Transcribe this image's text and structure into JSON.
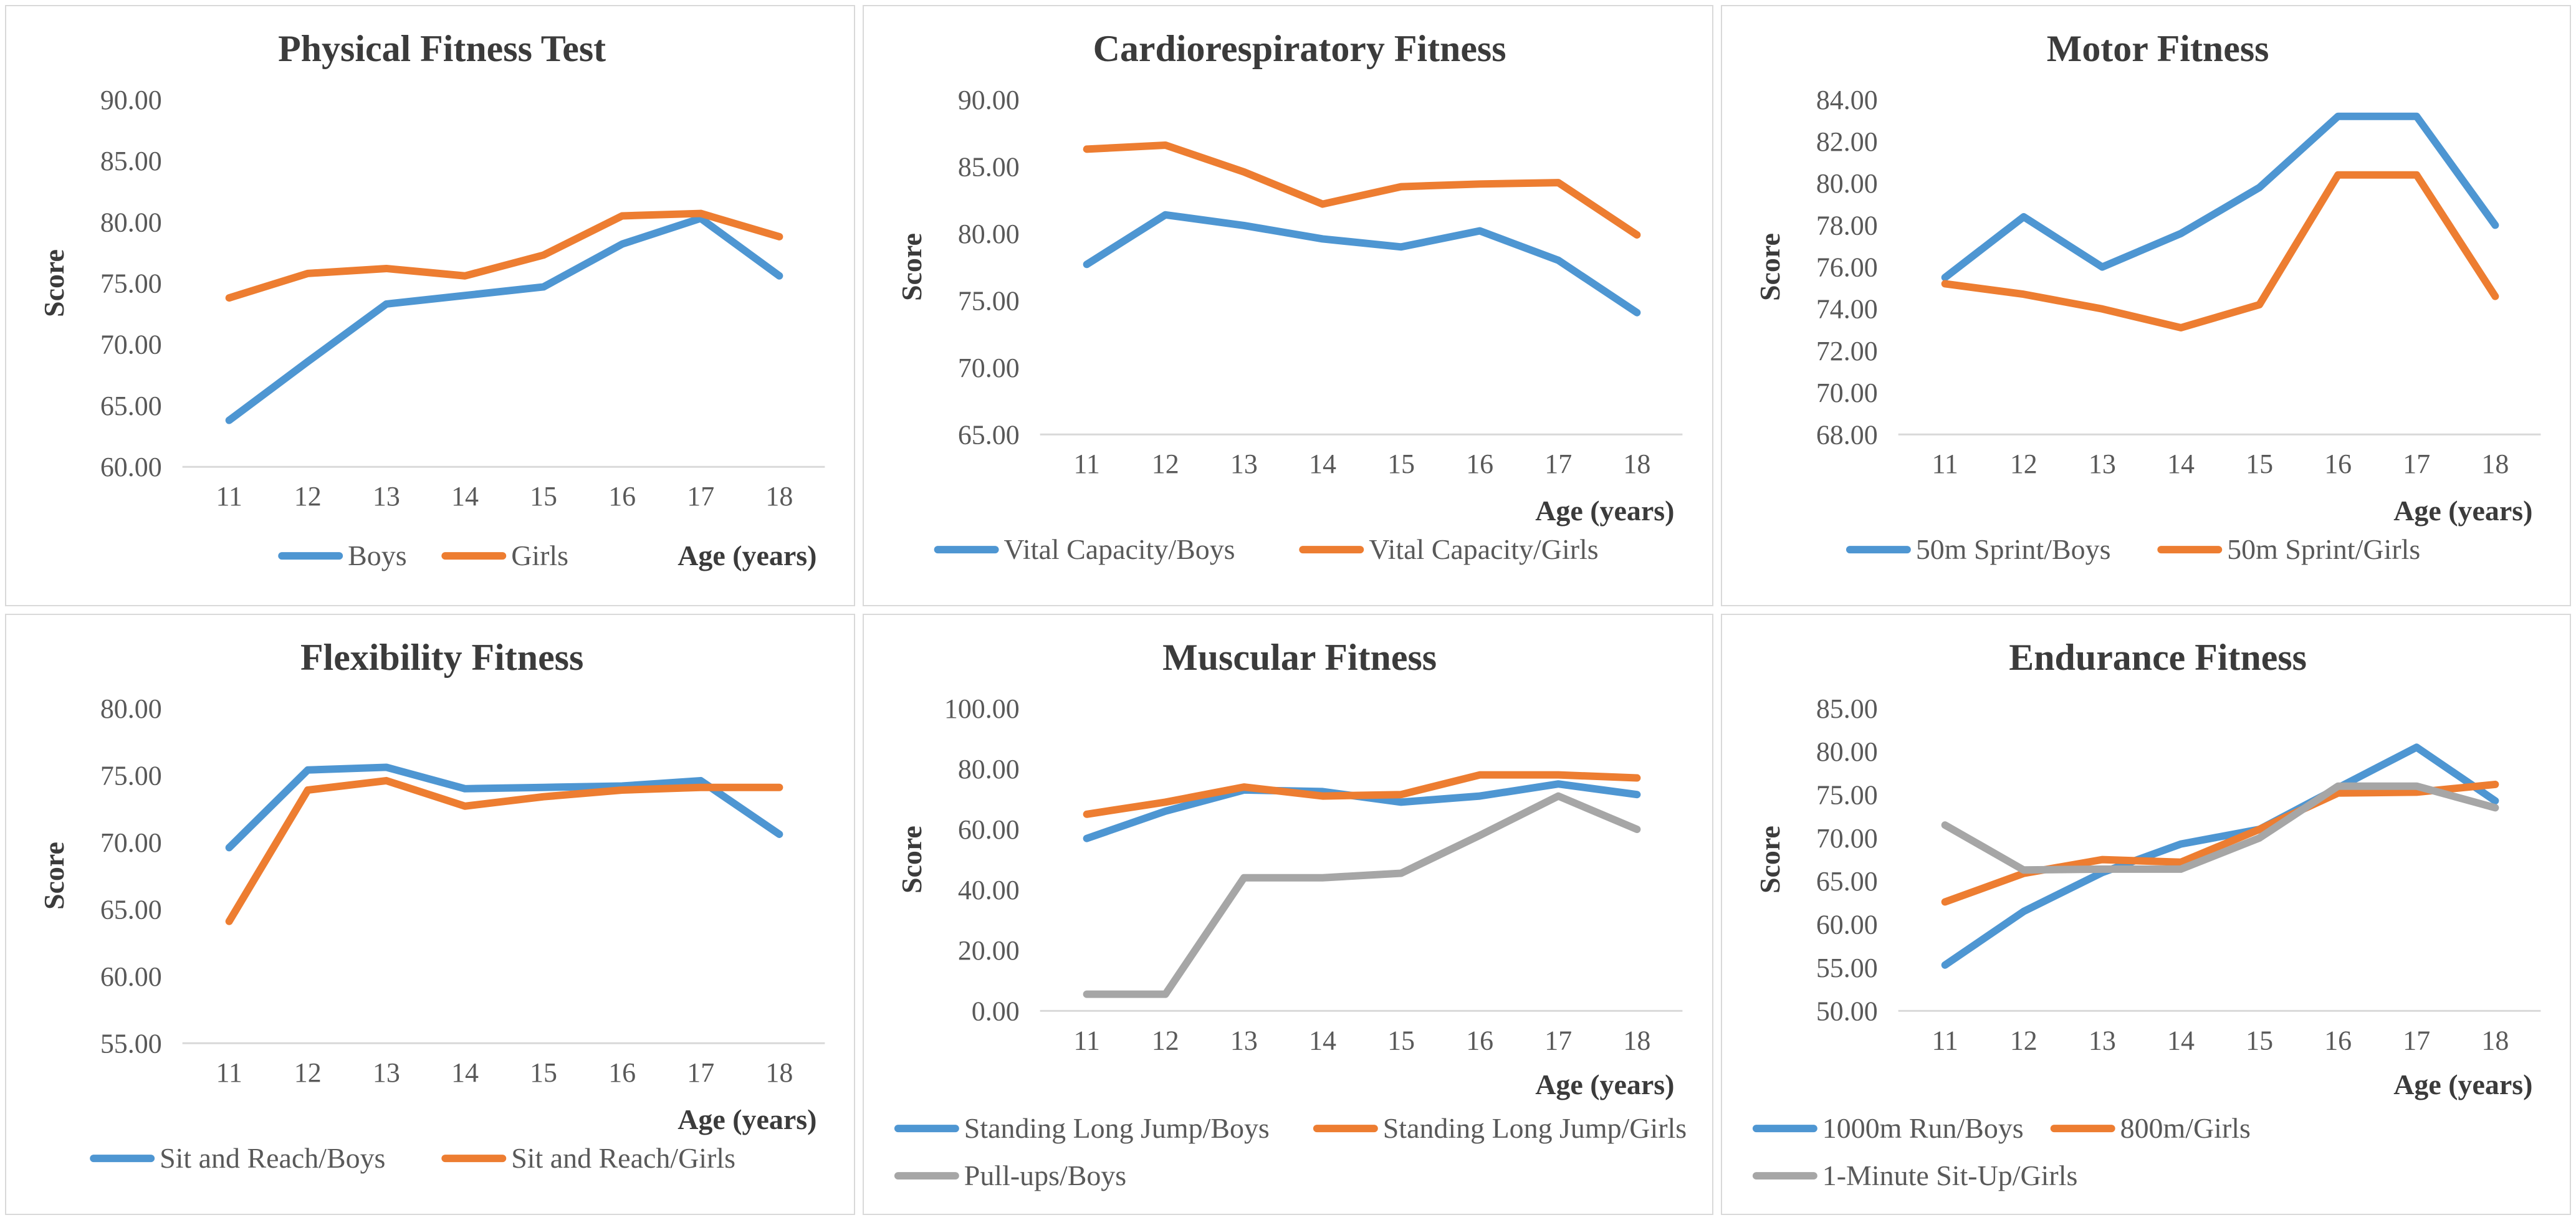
{
  "page": {
    "background": "#ffffff",
    "layout": "2x3-grid-of-line-charts"
  },
  "colors": {
    "blue": "#4e96d2",
    "orange": "#ed7d31",
    "gray": "#a6a6a6",
    "title_text": "#3b3b3b",
    "tick_text": "#595959",
    "axis_line": "#d9d9d9",
    "panel_border": "#d9d9d9"
  },
  "chart_data": [
    {
      "type": "line",
      "title": "Physical Fitness Test",
      "xlabel": "Age (years)",
      "ylabel": "Score",
      "x": [
        11,
        12,
        13,
        14,
        15,
        16,
        17,
        18
      ],
      "ylim": [
        60,
        90
      ],
      "ytick_step": 5,
      "ytick_labels": [
        "60.00",
        "65.00",
        "70.00",
        "75.00",
        "80.00",
        "85.00",
        "90.00"
      ],
      "grid": false,
      "legend_position": "bottom-center",
      "xlabel_inline": true,
      "series": [
        {
          "name": "Boys",
          "color": "blue",
          "values": [
            63.8,
            68.6,
            73.3,
            74.0,
            74.7,
            78.2,
            80.3,
            75.6
          ]
        },
        {
          "name": "Girls",
          "color": "orange",
          "values": [
            73.8,
            75.8,
            76.2,
            75.6,
            77.3,
            80.5,
            80.7,
            78.8
          ]
        }
      ]
    },
    {
      "type": "line",
      "title": "Cardiorespiratory Fitness",
      "xlabel": "Age (years)",
      "ylabel": "Score",
      "x": [
        11,
        12,
        13,
        14,
        15,
        16,
        17,
        18
      ],
      "ylim": [
        65,
        90
      ],
      "ytick_step": 5,
      "ytick_labels": [
        "65.00",
        "70.00",
        "75.00",
        "80.00",
        "85.00",
        "90.00"
      ],
      "grid": false,
      "legend_position": "bottom-center",
      "series": [
        {
          "name": "Vital Capacity/Boys",
          "color": "blue",
          "values": [
            77.7,
            81.4,
            80.6,
            79.6,
            79.0,
            80.2,
            78.0,
            74.1
          ]
        },
        {
          "name": "Vital Capacity/Girls",
          "color": "orange",
          "values": [
            86.3,
            86.6,
            84.6,
            82.2,
            83.5,
            83.7,
            83.8,
            79.9
          ]
        }
      ]
    },
    {
      "type": "line",
      "title": "Motor Fitness",
      "xlabel": "Age (years)",
      "ylabel": "Score",
      "x": [
        11,
        12,
        13,
        14,
        15,
        16,
        17,
        18
      ],
      "ylim": [
        68,
        84
      ],
      "ytick_step": 2,
      "ytick_labels": [
        "68.00",
        "70.00",
        "72.00",
        "74.00",
        "76.00",
        "78.00",
        "80.00",
        "82.00",
        "84.00"
      ],
      "grid": false,
      "legend_position": "bottom-center",
      "series": [
        {
          "name": "50m Sprint/Boys",
          "color": "blue",
          "values": [
            75.5,
            78.4,
            76.0,
            77.6,
            79.8,
            83.2,
            83.2,
            78.0
          ]
        },
        {
          "name": "50m Sprint/Girls",
          "color": "orange",
          "values": [
            75.2,
            74.7,
            74.0,
            73.1,
            74.2,
            80.4,
            80.4,
            74.6
          ]
        }
      ]
    },
    {
      "type": "line",
      "title": "Flexibility Fitness",
      "xlabel": "Age (years)",
      "ylabel": "Score",
      "x": [
        11,
        12,
        13,
        14,
        15,
        16,
        17,
        18
      ],
      "ylim": [
        55,
        80
      ],
      "ytick_step": 5,
      "ytick_labels": [
        "55.00",
        "60.00",
        "65.00",
        "70.00",
        "75.00",
        "80.00"
      ],
      "grid": false,
      "legend_position": "bottom-center",
      "series": [
        {
          "name": "Sit and Reach/Boys",
          "color": "blue",
          "values": [
            69.6,
            75.4,
            75.6,
            74.0,
            74.1,
            74.2,
            74.6,
            70.6
          ]
        },
        {
          "name": "Sit and Reach/Girls",
          "color": "orange",
          "values": [
            64.1,
            73.9,
            74.6,
            72.7,
            73.4,
            73.9,
            74.1,
            74.1
          ]
        }
      ]
    },
    {
      "type": "line",
      "title": "Muscular Fitness",
      "xlabel": "Age (years)",
      "ylabel": "Score",
      "x": [
        11,
        12,
        13,
        14,
        15,
        16,
        17,
        18
      ],
      "ylim": [
        0,
        100
      ],
      "ytick_step": 20,
      "ytick_labels": [
        "0.00",
        "20.00",
        "40.00",
        "60.00",
        "80.00",
        "100.00"
      ],
      "grid": false,
      "legend_position": "bottom-left-two-rows",
      "series": [
        {
          "name": "Standing Long Jump/Boys",
          "color": "blue",
          "values": [
            57.0,
            66.0,
            73.0,
            72.5,
            69.0,
            71.0,
            75.0,
            71.5
          ]
        },
        {
          "name": "Standing Long Jump/Girls",
          "color": "orange",
          "values": [
            65.0,
            69.0,
            74.0,
            71.0,
            71.5,
            78.0,
            78.0,
            77.0
          ]
        },
        {
          "name": "Pull-ups/Boys",
          "color": "gray",
          "values": [
            5.5,
            5.5,
            44.0,
            44.0,
            45.5,
            58.0,
            71.0,
            60.0
          ]
        }
      ]
    },
    {
      "type": "line",
      "title": "Endurance Fitness",
      "xlabel": "Age (years)",
      "ylabel": "Score",
      "x": [
        11,
        12,
        13,
        14,
        15,
        16,
        17,
        18
      ],
      "ylim": [
        50,
        85
      ],
      "ytick_step": 5,
      "ytick_labels": [
        "50.00",
        "55.00",
        "60.00",
        "65.00",
        "70.00",
        "75.00",
        "80.00",
        "85.00"
      ],
      "grid": false,
      "legend_position": "bottom-left-two-rows",
      "series": [
        {
          "name": "1000m Run/Boys",
          "color": "blue",
          "values": [
            55.3,
            61.5,
            66.0,
            69.3,
            71.0,
            75.8,
            80.5,
            74.3
          ]
        },
        {
          "name": "800m/Girls",
          "color": "orange",
          "values": [
            62.6,
            65.9,
            67.5,
            67.2,
            71.0,
            75.2,
            75.3,
            76.2
          ]
        },
        {
          "name": "1-Minute Sit-Up/Girls",
          "color": "gray",
          "values": [
            71.5,
            66.3,
            66.4,
            66.4,
            70.0,
            76.0,
            76.0,
            73.5
          ]
        }
      ]
    }
  ]
}
